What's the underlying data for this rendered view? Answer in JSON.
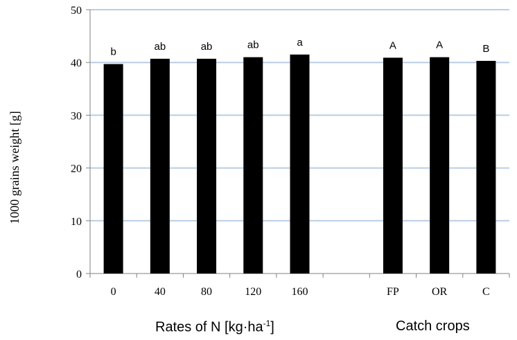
{
  "chart_data": {
    "type": "bar",
    "ylabel": "1000 grains weight [g]",
    "ylim": [
      0,
      50
    ],
    "yticks": [
      0,
      10,
      20,
      30,
      40,
      50
    ],
    "grid": true,
    "bar_color": "#000000",
    "grid_color": "#b9cde5",
    "categories": [
      "0",
      "40",
      "80",
      "120",
      "160",
      "",
      "FP",
      "OR",
      "C"
    ],
    "values": [
      39.7,
      40.7,
      40.7,
      41.0,
      41.5,
      null,
      40.9,
      41.0,
      40.3
    ],
    "significance_labels": [
      "b",
      "ab",
      "ab",
      "ab",
      "a",
      "",
      "A",
      "A",
      "B"
    ],
    "groups": [
      {
        "label_main": "Rates of N [kg·ha",
        "label_sup": "-1",
        "label_end": "]"
      },
      {
        "label_main": "Catch crops",
        "label_sup": "",
        "label_end": ""
      }
    ]
  }
}
